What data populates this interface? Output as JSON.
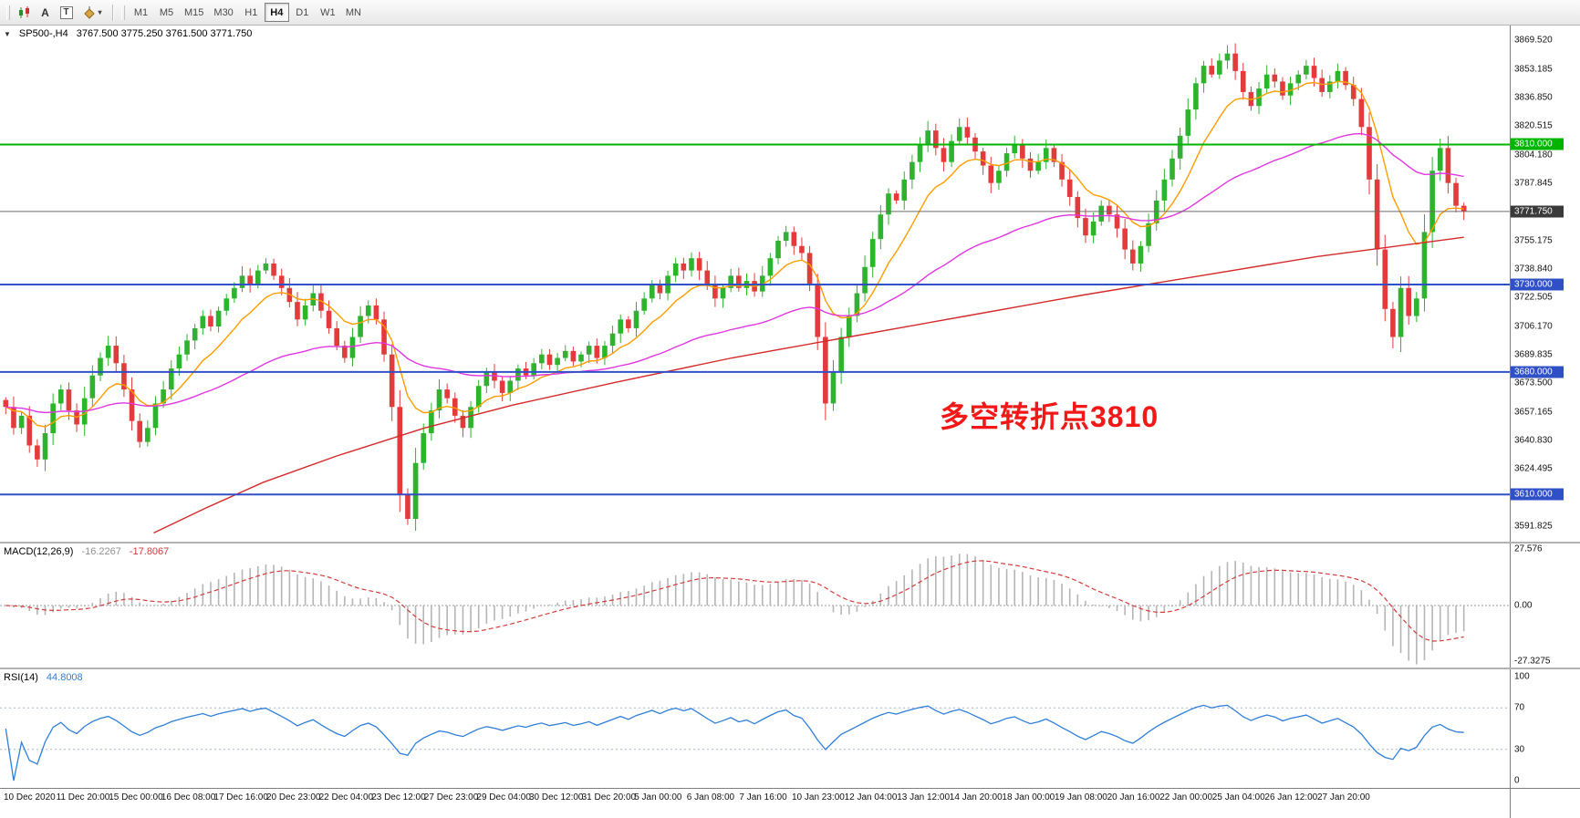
{
  "toolbar": {
    "text_tool": "A",
    "textbox_tool": "T",
    "timeframes": [
      "M1",
      "M5",
      "M15",
      "M30",
      "H1",
      "H4",
      "D1",
      "W1",
      "MN"
    ],
    "active_timeframe": "H4"
  },
  "chart": {
    "title_symbol": "SP500-,H4",
    "title_ohlc": "3767.500 3775.250 3761.500 3771.750"
  },
  "annotation": {
    "text": "多空转折点3810",
    "color": "#f21818"
  },
  "price_axis": {
    "min": 3583,
    "max": 3878,
    "ticks": [
      {
        "label": "3869.520",
        "value": 3869.52
      },
      {
        "label": "3853.185",
        "value": 3853.185
      },
      {
        "label": "3836.850",
        "value": 3836.85
      },
      {
        "label": "3820.515",
        "value": 3820.515
      },
      {
        "label": "3804.180",
        "value": 3804.18
      },
      {
        "label": "3787.845",
        "value": 3787.845
      },
      {
        "label": "3771.510",
        "value": 3771.51
      },
      {
        "label": "3755.175",
        "value": 3755.175
      },
      {
        "label": "3738.840",
        "value": 3738.84
      },
      {
        "label": "3722.505",
        "value": 3722.505
      },
      {
        "label": "3706.170",
        "value": 3706.17
      },
      {
        "label": "3689.835",
        "value": 3689.835
      },
      {
        "label": "3673.500",
        "value": 3673.5
      },
      {
        "label": "3657.165",
        "value": 3657.165
      },
      {
        "label": "3640.830",
        "value": 3640.83
      },
      {
        "label": "3624.495",
        "value": 3624.495
      },
      {
        "label": "3608.160",
        "value": 3608.16
      },
      {
        "label": "3591.825",
        "value": 3591.825
      }
    ],
    "badges": [
      {
        "label": "3810.000",
        "value": 3810,
        "bg": "#00b400",
        "fg": "#ffffff",
        "name": "level-3810-badge"
      },
      {
        "label": "3771.750",
        "value": 3771.75,
        "bg": "#3a3a3a",
        "fg": "#ffffff",
        "name": "current-price-badge"
      },
      {
        "label": "3730.000",
        "value": 3730,
        "bg": "#3050c8",
        "fg": "#ffffff",
        "name": "level-3730-badge"
      },
      {
        "label": "3680.000",
        "value": 3680,
        "bg": "#3050c8",
        "fg": "#ffffff",
        "name": "level-3680-badge"
      },
      {
        "label": "3610.000",
        "value": 3610,
        "bg": "#3050c8",
        "fg": "#ffffff",
        "name": "level-3610-badge"
      }
    ]
  },
  "macd": {
    "label": "MACD(12,26,9)",
    "value_main": "-16.2267",
    "value_signal": "-17.8067",
    "fast": 12,
    "slow": 26,
    "signal": 9,
    "range": 29.5,
    "hist_color": "#b5b5b5",
    "signal_color": "#d43c3c",
    "axis": [
      {
        "label": "27.576",
        "value": 27.576
      },
      {
        "label": "0.00",
        "value": 0
      },
      {
        "label": "-27.3275",
        "value": -27.3275
      }
    ]
  },
  "rsi": {
    "label": "RSI(14)",
    "value": "44.8008",
    "period": 14,
    "line_color": "#2f7ed8",
    "levels": [
      70,
      30
    ],
    "axis": [
      {
        "label": "100",
        "value": 100
      },
      {
        "label": "70",
        "value": 70
      },
      {
        "label": "30",
        "value": 30
      },
      {
        "label": "0",
        "value": 0
      }
    ]
  },
  "chart_data": {
    "type": "candlestick",
    "symbol": "SP500-",
    "period": "H4",
    "ohlc_display": {
      "open": "3767.500",
      "high": "3775.250",
      "low": "3761.500",
      "close": "3771.750"
    },
    "y_range": [
      3583,
      3878
    ],
    "up_color": "#2db32d",
    "down_color": "#e23b3b",
    "closes": [
      3660,
      3648,
      3655,
      3638,
      3630,
      3645,
      3662,
      3670,
      3658,
      3650,
      3665,
      3678,
      3688,
      3695,
      3685,
      3670,
      3652,
      3640,
      3648,
      3662,
      3670,
      3682,
      3690,
      3698,
      3705,
      3712,
      3706,
      3715,
      3722,
      3728,
      3735,
      3730,
      3738,
      3742,
      3735,
      3728,
      3720,
      3710,
      3718,
      3725,
      3715,
      3705,
      3695,
      3688,
      3700,
      3712,
      3718,
      3710,
      3690,
      3660,
      3610,
      3596,
      3628,
      3645,
      3658,
      3670,
      3665,
      3655,
      3648,
      3660,
      3672,
      3680,
      3675,
      3668,
      3675,
      3682,
      3678,
      3685,
      3690,
      3684,
      3688,
      3692,
      3686,
      3690,
      3695,
      3688,
      3695,
      3702,
      3710,
      3705,
      3715,
      3722,
      3730,
      3725,
      3735,
      3742,
      3738,
      3745,
      3738,
      3730,
      3722,
      3728,
      3735,
      3728,
      3732,
      3726,
      3735,
      3745,
      3755,
      3760,
      3752,
      3748,
      3730,
      3700,
      3662,
      3680,
      3700,
      3712,
      3725,
      3740,
      3756,
      3770,
      3782,
      3778,
      3790,
      3800,
      3810,
      3818,
      3808,
      3800,
      3812,
      3820,
      3814,
      3806,
      3798,
      3788,
      3795,
      3805,
      3810,
      3802,
      3795,
      3800,
      3808,
      3800,
      3790,
      3780,
      3768,
      3758,
      3766,
      3775,
      3770,
      3762,
      3750,
      3742,
      3752,
      3765,
      3778,
      3790,
      3802,
      3815,
      3830,
      3845,
      3855,
      3850,
      3858,
      3862,
      3852,
      3840,
      3832,
      3842,
      3850,
      3846,
      3838,
      3845,
      3850,
      3855,
      3848,
      3840,
      3846,
      3852,
      3844,
      3836,
      3820,
      3790,
      3750,
      3716,
      3700,
      3728,
      3712,
      3722,
      3760,
      3795,
      3808,
      3788,
      3775,
      3771.75
    ],
    "h_lines": [
      {
        "price": 3810,
        "color": "#00b400",
        "width": 2
      },
      {
        "price": 3771.75,
        "color": "#6b6b6b",
        "width": 1
      },
      {
        "price": 3730,
        "color": "#3050c8",
        "width": 2
      },
      {
        "price": 3680,
        "color": "#3050c8",
        "width": 2
      },
      {
        "price": 3610,
        "color": "#3050c8",
        "width": 2
      }
    ],
    "moving_averages": [
      {
        "name": "ma-fast",
        "type": "ema",
        "period": 10,
        "color": "#ff9c00"
      },
      {
        "name": "ma-medium",
        "type": "ema",
        "period": 48,
        "color": "#e036e0"
      },
      {
        "name": "ma-slow",
        "type": "points",
        "color": "#d42a2a",
        "points": [
          [
            0.105,
            3588
          ],
          [
            0.14,
            3602
          ],
          [
            0.18,
            3617
          ],
          [
            0.23,
            3632
          ],
          [
            0.29,
            3648
          ],
          [
            0.35,
            3661
          ],
          [
            0.42,
            3674
          ],
          [
            0.5,
            3688
          ],
          [
            0.58,
            3700
          ],
          [
            0.66,
            3712
          ],
          [
            0.74,
            3724
          ],
          [
            0.82,
            3735
          ],
          [
            0.9,
            3746
          ],
          [
            1,
            3757
          ]
        ]
      }
    ],
    "time_labels": [
      "10 Dec 2020",
      "11 Dec 20:00",
      "15 Dec 00:00",
      "16 Dec 08:00",
      "17 Dec 16:00",
      "20 Dec 23:00",
      "22 Dec 04:00",
      "23 Dec 12:00",
      "27 Dec 23:00",
      "29 Dec 04:00",
      "30 Dec 12:00",
      "31 Dec 20:00",
      "5 Jan 00:00",
      "6 Jan 08:00",
      "7 Jan 16:00",
      "10 Jan 23:00",
      "12 Jan 04:00",
      "13 Jan 12:00",
      "14 Jan 20:00",
      "18 Jan 00:00",
      "19 Jan 08:00",
      "20 Jan 16:00",
      "22 Jan 00:00",
      "25 Jan 04:00",
      "26 Jan 12:00",
      "27 Jan 20:00"
    ]
  }
}
